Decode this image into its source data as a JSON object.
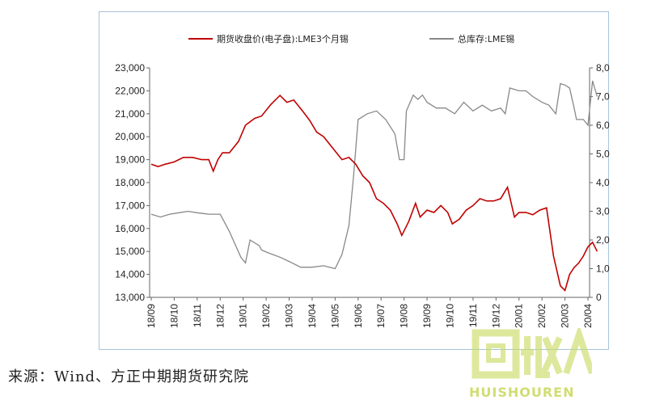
{
  "chart_data": {
    "type": "line",
    "legend": {
      "position": "top",
      "entries": [
        {
          "name": "期货收盘价(电子盘):LME3个月锡",
          "color": "#c00000"
        },
        {
          "name": "总库存:LME锡",
          "color": "#888888"
        }
      ]
    },
    "x_tick_labels": [
      "18/09",
      "18/10",
      "18/11",
      "18/12",
      "19/01",
      "19/02",
      "19/03",
      "19/04",
      "19/05",
      "19/06",
      "19/07",
      "19/08",
      "19/09",
      "19/10",
      "19/11",
      "19/12",
      "20/01",
      "20/02",
      "20/03",
      "20/04"
    ],
    "y_left": {
      "ylim": [
        13000,
        23000
      ],
      "ticks": [
        "13,000",
        "14,000",
        "15,000",
        "16,000",
        "17,000",
        "18,000",
        "19,000",
        "20,000",
        "21,000",
        "22,000",
        "23,000"
      ]
    },
    "y_right": {
      "ylim": [
        0,
        8000
      ],
      "ticks": [
        "0",
        "1,000",
        "2,000",
        "3,000",
        "4,000",
        "5,000",
        "6,000",
        "7,000",
        "8,000"
      ]
    },
    "grid": false,
    "series": [
      {
        "name": "期货收盘价(电子盘):LME3个月锡",
        "axis": "left",
        "x": [
          0,
          0.3,
          0.6,
          1.0,
          1.4,
          1.8,
          2.2,
          2.5,
          2.7,
          2.9,
          3.1,
          3.4,
          3.8,
          4.1,
          4.5,
          4.8,
          5.2,
          5.6,
          5.9,
          6.2,
          6.6,
          6.9,
          7.2,
          7.5,
          7.9,
          8.3,
          8.6,
          8.9,
          9.2,
          9.5,
          9.8,
          10.1,
          10.4,
          10.7,
          10.9,
          11.2,
          11.5,
          11.7,
          12.0,
          12.3,
          12.6,
          12.9,
          13.1,
          13.4,
          13.7,
          14.0,
          14.3,
          14.6,
          14.9,
          15.2,
          15.5,
          15.8,
          16.0,
          16.3,
          16.6,
          16.9,
          17.2,
          17.5,
          17.8,
          18.0,
          18.2,
          18.4,
          18.6,
          18.8,
          19.0,
          19.2,
          19.4
        ],
        "values": [
          18800,
          18700,
          18800,
          18900,
          19100,
          19100,
          19000,
          19000,
          18500,
          19000,
          19300,
          19300,
          19800,
          20500,
          20800,
          20900,
          21400,
          21800,
          21500,
          21600,
          21100,
          20700,
          20200,
          20000,
          19500,
          19000,
          19100,
          18800,
          18300,
          18000,
          17300,
          17100,
          16800,
          16200,
          15700,
          16300,
          17100,
          16500,
          16800,
          16700,
          17000,
          16700,
          16200,
          16400,
          16800,
          17000,
          17300,
          17200,
          17200,
          17300,
          17800,
          16500,
          16700,
          16700,
          16600,
          16800,
          16900,
          14800,
          13500,
          13300,
          14000,
          14300,
          14500,
          14800,
          15200,
          15400,
          15000
        ],
        "color": "#c00000"
      },
      {
        "name": "总库存:LME锡",
        "axis": "right",
        "x": [
          0,
          0.4,
          0.8,
          1.2,
          1.6,
          2.0,
          2.5,
          3.0,
          3.4,
          3.9,
          4.1,
          4.3,
          4.7,
          4.8,
          5.1,
          5.6,
          6.0,
          6.5,
          7.0,
          7.5,
          8.0,
          8.3,
          8.6,
          8.8,
          9.0,
          9.4,
          9.8,
          10.2,
          10.6,
          10.8,
          11.0,
          11.1,
          11.4,
          11.6,
          11.8,
          12.0,
          12.4,
          12.8,
          13.2,
          13.6,
          14.0,
          14.4,
          14.8,
          15.2,
          15.4,
          15.6,
          16.0,
          16.3,
          16.6,
          17.0,
          17.3,
          17.6,
          17.8,
          18.0,
          18.2,
          18.4,
          18.5,
          18.6,
          18.8,
          19.0,
          19.2,
          19.4
        ],
        "values": [
          2900,
          2800,
          2900,
          2950,
          3000,
          2950,
          2900,
          2900,
          2300,
          1400,
          1200,
          2000,
          1800,
          1650,
          1550,
          1400,
          1250,
          1050,
          1050,
          1100,
          1000,
          1500,
          2500,
          4200,
          6200,
          6400,
          6500,
          6200,
          5700,
          4800,
          4800,
          6500,
          7050,
          6900,
          7050,
          6800,
          6600,
          6600,
          6400,
          6800,
          6500,
          6700,
          6500,
          6600,
          6400,
          7300,
          7200,
          7200,
          7000,
          6800,
          6700,
          6400,
          7450,
          7400,
          7300,
          6600,
          6200,
          6200,
          6200,
          6000,
          7550,
          7000
        ],
        "color": "#888888"
      }
    ]
  },
  "source_note": "来源：Wind、方正中期期货研究院",
  "watermark": {
    "text": "HUISHOUREN",
    "logo_text": "回收"
  }
}
